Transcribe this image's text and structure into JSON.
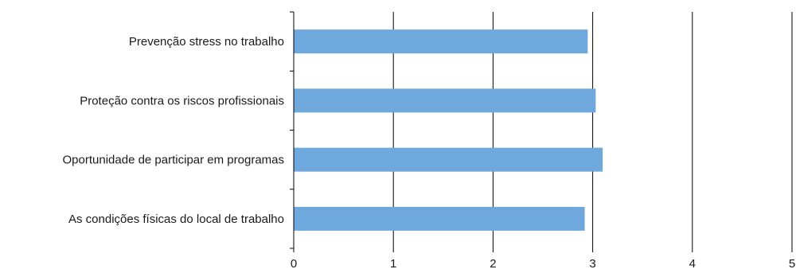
{
  "chart_data": {
    "type": "bar",
    "orientation": "horizontal",
    "categories": [
      "Prevenção stress no trabalho",
      "Proteção contra os riscos profissionais",
      "Oportunidade de participar em programas",
      "As condições físicas do local de trabalho"
    ],
    "values": [
      2.95,
      3.03,
      3.1,
      2.92
    ],
    "xlim": [
      0,
      5
    ],
    "xticks": [
      "0",
      "1",
      "2",
      "3",
      "4",
      "5"
    ],
    "grid": true,
    "bar_color": "#6fa8dc",
    "title": "",
    "xlabel": "",
    "ylabel": ""
  }
}
